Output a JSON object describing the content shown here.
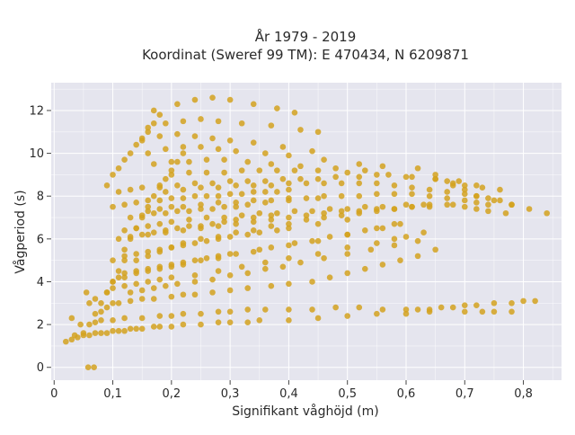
{
  "chart_data": {
    "type": "scatter",
    "title_line1": "År 1979 - 2019",
    "title_line2": "Koordinat (Sweref 99 TM): E 470434, N 6209871",
    "xlabel": "Signifikant våghöjd (m)",
    "ylabel": "Vågperiod (s)",
    "xlim": [
      -0.005,
      0.865
    ],
    "ylim": [
      -0.6,
      13.3
    ],
    "x_ticks": [
      0,
      0.1,
      0.2,
      0.3,
      0.4,
      0.5,
      0.6,
      0.7,
      0.8
    ],
    "x_tick_labels": [
      "0",
      "0,1",
      "0,2",
      "0,3",
      "0,4",
      "0,5",
      "0,6",
      "0,7",
      "0,8"
    ],
    "y_ticks": [
      0,
      2,
      4,
      6,
      8,
      10,
      12
    ],
    "y_tick_labels": [
      "0",
      "2",
      "4",
      "6",
      "8",
      "10",
      "12"
    ],
    "grid": true,
    "marker_color": "#D4A21F",
    "plot_bg": "#E5E5EE",
    "grid_color": "#FFFFFF",
    "series": [
      {
        "x": [
          0.02,
          0.03,
          0.04,
          0.05,
          0.06,
          0.07,
          0.08,
          0.09,
          0.1,
          0.11,
          0.12,
          0.13,
          0.14,
          0.15,
          0.17,
          0.18,
          0.2,
          0.22,
          0.25,
          0.28,
          0.3,
          0.33,
          0.35,
          0.4,
          0.45,
          0.5,
          0.55,
          0.6,
          0.64,
          0.7,
          0.73,
          0.75,
          0.78,
          0.06,
          0.07,
          0.08,
          0.1,
          0.12,
          0.15,
          0.18,
          0.2,
          0.22,
          0.25,
          0.28,
          0.3,
          0.33,
          0.36,
          0.4,
          0.44,
          0.48,
          0.52,
          0.56,
          0.6,
          0.62,
          0.64,
          0.66,
          0.68,
          0.7,
          0.72,
          0.75,
          0.78,
          0.8,
          0.82,
          0.08,
          0.09,
          0.1,
          0.11,
          0.13,
          0.15,
          0.17,
          0.2,
          0.22,
          0.24,
          0.27,
          0.3,
          0.33,
          0.37,
          0.4,
          0.44,
          0.47,
          0.5,
          0.53,
          0.56,
          0.59,
          0.62,
          0.65,
          0.06,
          0.07,
          0.09,
          0.1,
          0.12,
          0.14,
          0.16,
          0.18,
          0.2,
          0.24,
          0.28,
          0.32,
          0.36,
          0.4,
          0.45,
          0.5,
          0.55,
          0.58,
          0.6,
          0.63,
          0.1,
          0.11,
          0.12,
          0.14,
          0.16,
          0.18,
          0.2,
          0.22,
          0.24,
          0.26,
          0.28,
          0.3,
          0.35,
          0.4,
          0.45,
          0.5,
          0.55,
          0.58,
          0.1,
          0.12,
          0.14,
          0.16,
          0.18,
          0.2,
          0.22,
          0.24,
          0.26,
          0.28,
          0.3,
          0.33,
          0.35,
          0.38,
          0.4,
          0.45,
          0.5,
          0.11,
          0.13,
          0.15,
          0.17,
          0.19,
          0.21,
          0.23,
          0.25,
          0.27,
          0.29,
          0.31,
          0.34,
          0.37,
          0.13,
          0.15,
          0.17,
          0.19,
          0.21,
          0.23,
          0.25,
          0.27,
          0.29,
          0.31,
          0.33,
          0.36,
          0.4,
          0.45,
          0.1,
          0.12,
          0.14,
          0.16,
          0.18,
          0.2,
          0.22,
          0.24,
          0.26,
          0.28,
          0.3,
          0.32,
          0.34,
          0.36,
          0.38,
          0.4,
          0.11,
          0.13,
          0.15,
          0.18,
          0.21,
          0.24,
          0.27,
          0.3,
          0.33,
          0.36,
          0.39,
          0.42,
          0.45,
          0.48,
          0.52,
          0.12,
          0.14,
          0.16,
          0.18,
          0.2,
          0.22,
          0.25,
          0.28,
          0.31,
          0.34,
          0.37,
          0.41,
          0.44,
          0.47,
          0.5,
          0.53,
          0.56,
          0.59,
          0.13,
          0.15,
          0.17,
          0.19,
          0.21,
          0.24,
          0.27,
          0.3,
          0.33,
          0.36,
          0.39,
          0.42,
          0.46,
          0.5,
          0.54,
          0.58,
          0.62,
          0.12,
          0.14,
          0.16,
          0.18,
          0.2,
          0.23,
          0.26,
          0.29,
          0.32,
          0.35,
          0.38,
          0.41,
          0.44,
          0.47,
          0.5,
          0.53,
          0.56,
          0.6,
          0.63,
          0.14,
          0.16,
          0.18,
          0.2,
          0.22,
          0.25,
          0.28,
          0.31,
          0.34,
          0.37,
          0.4,
          0.43,
          0.46,
          0.49,
          0.52,
          0.55,
          0.58,
          0.61,
          0.64,
          0.68,
          0.16,
          0.18,
          0.2,
          0.22,
          0.25,
          0.28,
          0.31,
          0.34,
          0.37,
          0.4,
          0.43,
          0.46,
          0.49,
          0.52,
          0.55,
          0.58,
          0.61,
          0.64,
          0.67,
          0.7,
          0.72,
          0.74,
          0.16,
          0.19,
          0.22,
          0.25,
          0.28,
          0.31,
          0.34,
          0.37,
          0.4,
          0.43,
          0.46,
          0.49,
          0.52,
          0.55,
          0.58,
          0.61,
          0.64,
          0.67,
          0.7,
          0.72,
          0.74,
          0.77,
          0.19,
          0.22,
          0.25,
          0.28,
          0.31,
          0.34,
          0.37,
          0.4,
          0.43,
          0.46,
          0.49,
          0.52,
          0.55,
          0.58,
          0.61,
          0.64,
          0.67,
          0.7,
          0.72,
          0.74,
          0.76,
          0.78,
          0.2,
          0.23,
          0.26,
          0.29,
          0.32,
          0.35,
          0.38,
          0.41,
          0.45,
          0.5,
          0.55,
          0.6,
          0.65,
          0.68,
          0.7,
          0.73,
          0.76,
          0.17,
          0.2,
          0.23,
          0.26,
          0.29,
          0.33,
          0.37,
          0.42,
          0.48,
          0.53,
          0.57,
          0.61,
          0.65,
          0.69,
          0.72,
          0.16,
          0.19,
          0.22,
          0.25,
          0.28,
          0.31,
          0.36,
          0.4,
          0.46,
          0.52,
          0.56,
          0.15,
          0.18,
          0.21,
          0.24,
          0.27,
          0.3,
          0.34,
          0.39,
          0.44,
          0.16,
          0.19,
          0.22,
          0.25,
          0.28,
          0.32,
          0.37,
          0.42,
          0.45,
          0.17,
          0.21,
          0.24,
          0.27,
          0.3,
          0.34,
          0.38,
          0.41,
          0.07,
          0.08,
          0.09,
          0.1,
          0.11,
          0.12,
          0.12,
          0.13,
          0.14,
          0.15,
          0.16,
          0.17,
          0.18,
          0.19,
          0.2,
          0.21,
          0.22,
          0.09,
          0.1,
          0.11,
          0.12,
          0.13,
          0.14,
          0.15,
          0.16,
          0.17,
          0.18,
          0.058,
          0.068,
          0.05,
          0.045,
          0.03,
          0.035,
          0.055,
          0.62,
          0.65,
          0.67,
          0.68,
          0.7,
          0.72,
          0.75,
          0.78,
          0.81,
          0.84
        ],
        "y": [
          1.2,
          1.3,
          1.4,
          1.5,
          1.5,
          1.6,
          1.6,
          1.6,
          1.7,
          1.7,
          1.7,
          1.8,
          1.8,
          1.8,
          1.9,
          1.9,
          1.9,
          2.0,
          2.0,
          2.1,
          2.1,
          2.1,
          2.2,
          2.2,
          2.3,
          2.4,
          2.5,
          2.5,
          2.6,
          2.6,
          2.6,
          2.6,
          2.6,
          2.0,
          2.1,
          2.2,
          2.2,
          2.3,
          2.3,
          2.4,
          2.4,
          2.5,
          2.5,
          2.6,
          2.6,
          2.7,
          2.7,
          2.7,
          2.7,
          2.8,
          2.8,
          2.7,
          2.7,
          2.7,
          2.7,
          2.8,
          2.8,
          2.9,
          2.9,
          3.0,
          3.0,
          3.1,
          3.1,
          2.6,
          2.8,
          3.0,
          3.0,
          3.1,
          3.2,
          3.2,
          3.3,
          3.4,
          3.4,
          3.5,
          3.6,
          3.7,
          3.8,
          3.9,
          4.0,
          4.2,
          4.4,
          4.6,
          4.8,
          5.0,
          5.2,
          5.5,
          3.0,
          3.2,
          3.5,
          3.7,
          3.8,
          3.9,
          4.0,
          4.1,
          4.2,
          4.3,
          4.5,
          4.7,
          4.9,
          5.1,
          5.3,
          5.6,
          5.8,
          6.0,
          6.1,
          6.3,
          4.0,
          4.2,
          4.4,
          4.5,
          4.6,
          4.7,
          4.8,
          4.9,
          5.0,
          5.1,
          5.2,
          5.3,
          5.5,
          5.7,
          5.9,
          6.2,
          6.5,
          6.7,
          5.0,
          5.2,
          5.3,
          5.4,
          5.5,
          5.6,
          5.7,
          5.8,
          5.9,
          6.0,
          6.1,
          6.2,
          6.3,
          6.4,
          6.5,
          6.7,
          6.9,
          6.0,
          6.1,
          6.2,
          6.3,
          6.4,
          6.5,
          6.6,
          6.6,
          6.7,
          6.8,
          6.9,
          7.0,
          7.1,
          7.0,
          7.1,
          7.2,
          7.2,
          7.3,
          7.3,
          7.4,
          7.4,
          7.5,
          7.5,
          7.6,
          7.7,
          7.8,
          7.9,
          7.5,
          7.6,
          7.7,
          7.8,
          7.8,
          7.9,
          7.9,
          8.0,
          8.0,
          8.0,
          8.1,
          8.1,
          8.2,
          8.2,
          8.2,
          8.3,
          8.2,
          8.3,
          8.4,
          8.5,
          8.5,
          8.6,
          8.6,
          8.7,
          8.7,
          8.7,
          8.8,
          8.8,
          8.8,
          8.9,
          8.9,
          4.2,
          4.4,
          4.5,
          4.6,
          4.7,
          4.8,
          5.0,
          5.1,
          5.3,
          5.4,
          5.6,
          5.8,
          5.9,
          6.1,
          6.2,
          6.4,
          6.5,
          6.7,
          3.5,
          3.6,
          3.7,
          3.8,
          3.9,
          4.0,
          4.1,
          4.3,
          4.4,
          4.6,
          4.7,
          4.9,
          5.1,
          5.3,
          5.5,
          5.7,
          5.9,
          6.4,
          6.5,
          6.6,
          6.7,
          6.8,
          6.9,
          7.0,
          7.0,
          7.1,
          7.2,
          7.2,
          7.3,
          7.3,
          7.4,
          7.4,
          7.5,
          7.5,
          7.6,
          7.6,
          5.0,
          5.2,
          5.4,
          5.6,
          5.8,
          6.0,
          6.1,
          6.3,
          6.4,
          6.6,
          6.7,
          6.9,
          7.0,
          7.1,
          7.2,
          7.3,
          7.4,
          7.5,
          7.5,
          7.6,
          7.3,
          7.4,
          7.5,
          7.5,
          7.6,
          7.7,
          7.7,
          7.8,
          7.8,
          7.9,
          7.9,
          8.0,
          8.0,
          8.0,
          8.1,
          8.1,
          8.1,
          8.0,
          7.9,
          7.8,
          7.7,
          7.6,
          6.2,
          6.3,
          6.4,
          6.5,
          6.6,
          6.7,
          6.8,
          6.9,
          7.0,
          7.1,
          7.2,
          7.3,
          7.3,
          7.4,
          7.4,
          7.5,
          7.6,
          7.6,
          7.5,
          7.4,
          7.3,
          7.2,
          8.2,
          8.3,
          8.4,
          8.4,
          8.5,
          8.5,
          8.5,
          8.6,
          8.6,
          8.6,
          8.6,
          8.6,
          8.6,
          8.5,
          8.4,
          8.3,
          8.2,
          8.1,
          8.0,
          7.9,
          7.8,
          7.6,
          9.0,
          9.1,
          9.1,
          9.1,
          9.2,
          9.2,
          9.2,
          9.2,
          9.2,
          9.1,
          9.0,
          8.9,
          8.8,
          8.6,
          8.5,
          8.4,
          8.3,
          9.5,
          9.6,
          9.6,
          9.7,
          9.7,
          9.6,
          9.5,
          9.4,
          9.3,
          9.2,
          9.0,
          8.9,
          8.8,
          8.7,
          8.5,
          10.0,
          10.2,
          10.3,
          10.3,
          10.2,
          10.1,
          10.0,
          9.9,
          9.7,
          9.5,
          9.4,
          10.6,
          10.8,
          10.9,
          10.8,
          10.7,
          10.6,
          10.5,
          10.3,
          10.1,
          11.2,
          11.4,
          11.5,
          11.6,
          11.5,
          11.4,
          11.3,
          11.1,
          11.0,
          12.0,
          12.3,
          12.5,
          12.6,
          12.5,
          12.3,
          12.1,
          11.9,
          2.5,
          3.0,
          3.5,
          4.0,
          4.5,
          5.0,
          5.5,
          6.0,
          6.5,
          7.0,
          7.5,
          8.0,
          8.4,
          8.8,
          9.2,
          9.6,
          10.0,
          8.5,
          9.0,
          9.3,
          9.7,
          10.0,
          10.4,
          10.7,
          11.0,
          11.4,
          11.8,
          0.0,
          0.0,
          1.6,
          2.0,
          2.3,
          1.5,
          3.5,
          9.3,
          9.0,
          8.7,
          8.5,
          8.3,
          8.0,
          7.8,
          7.6,
          7.4,
          7.2
        ]
      }
    ]
  }
}
